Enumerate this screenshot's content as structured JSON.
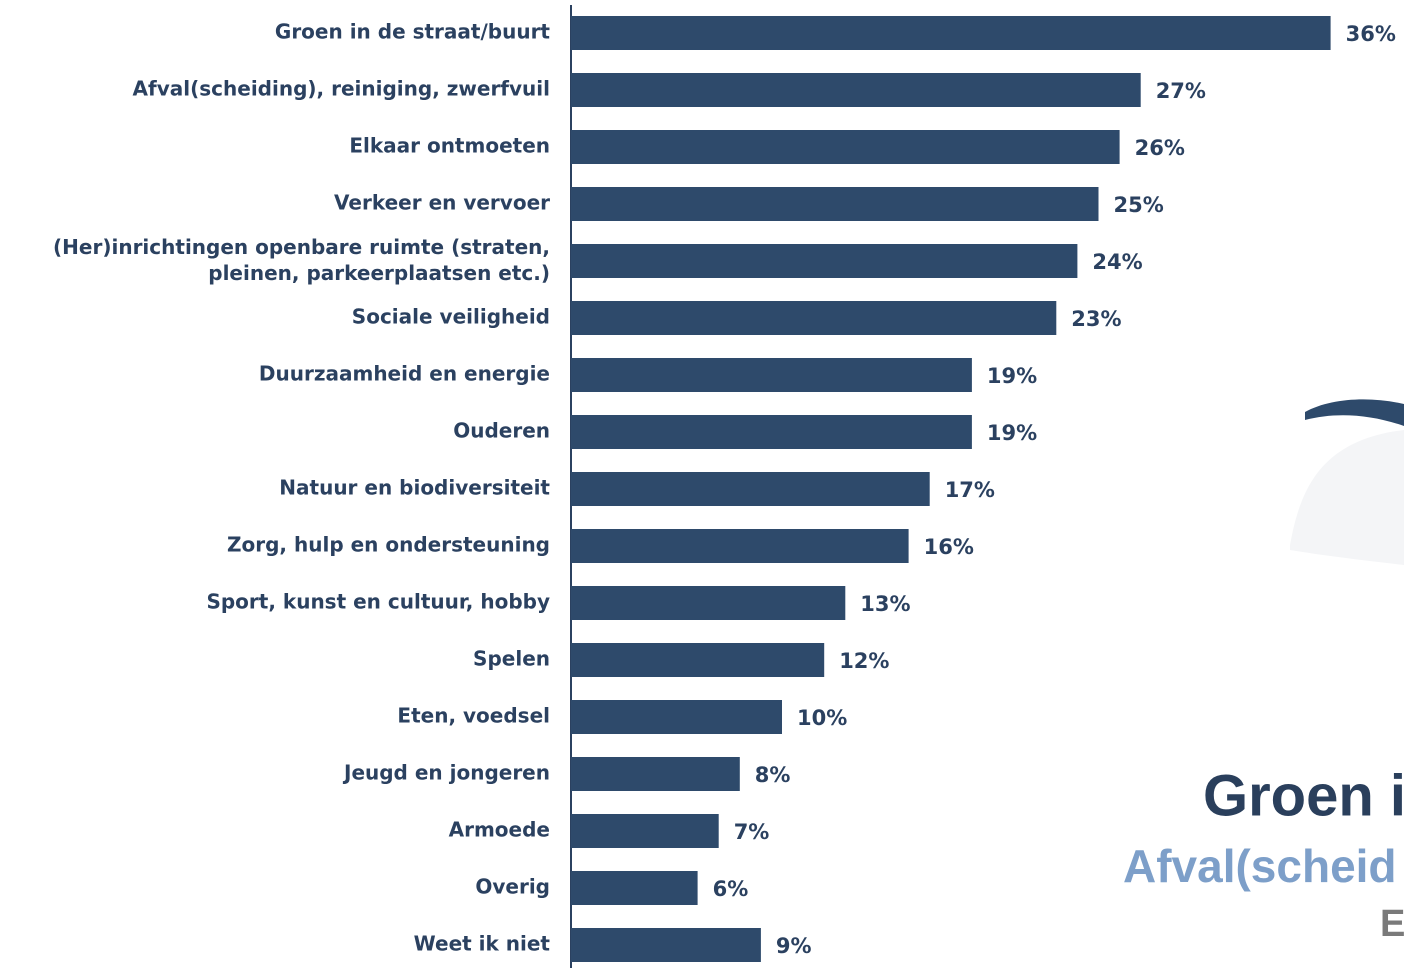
{
  "chart_data": {
    "type": "barh",
    "categories": [
      "Groen in de straat/buurt",
      "Afval(scheiding), reiniging, zwerfvuil",
      "Elkaar ontmoeten",
      "Verkeer en vervoer",
      "(Her)inrichtingen openbare ruimte  (straten,\npleinen, parkeerplaatsen etc.)",
      "Sociale veiligheid",
      "Duurzaamheid en energie",
      "Ouderen",
      "Natuur en biodiversiteit",
      "Zorg, hulp en ondersteuning",
      "Sport, kunst en cultuur, hobby",
      "Spelen",
      "Eten, voedsel",
      "Jeugd en jongeren",
      "Armoede",
      "Overig",
      "Weet ik niet"
    ],
    "values": [
      36,
      27,
      26,
      25,
      24,
      23,
      19,
      19,
      17,
      16,
      13,
      12,
      10,
      8,
      7,
      6,
      9
    ],
    "value_labels": [
      "36%",
      "27%",
      "26%",
      "25%",
      "24%",
      "23%",
      "19%",
      "19%",
      "17%",
      "16%",
      "13%",
      "12%",
      "10%",
      "8%",
      "7%",
      "6%",
      "9%"
    ],
    "color": "#2e4a6b"
  },
  "decoration": {
    "words": [
      "Groen i",
      "Afval(scheid",
      "E"
    ]
  }
}
